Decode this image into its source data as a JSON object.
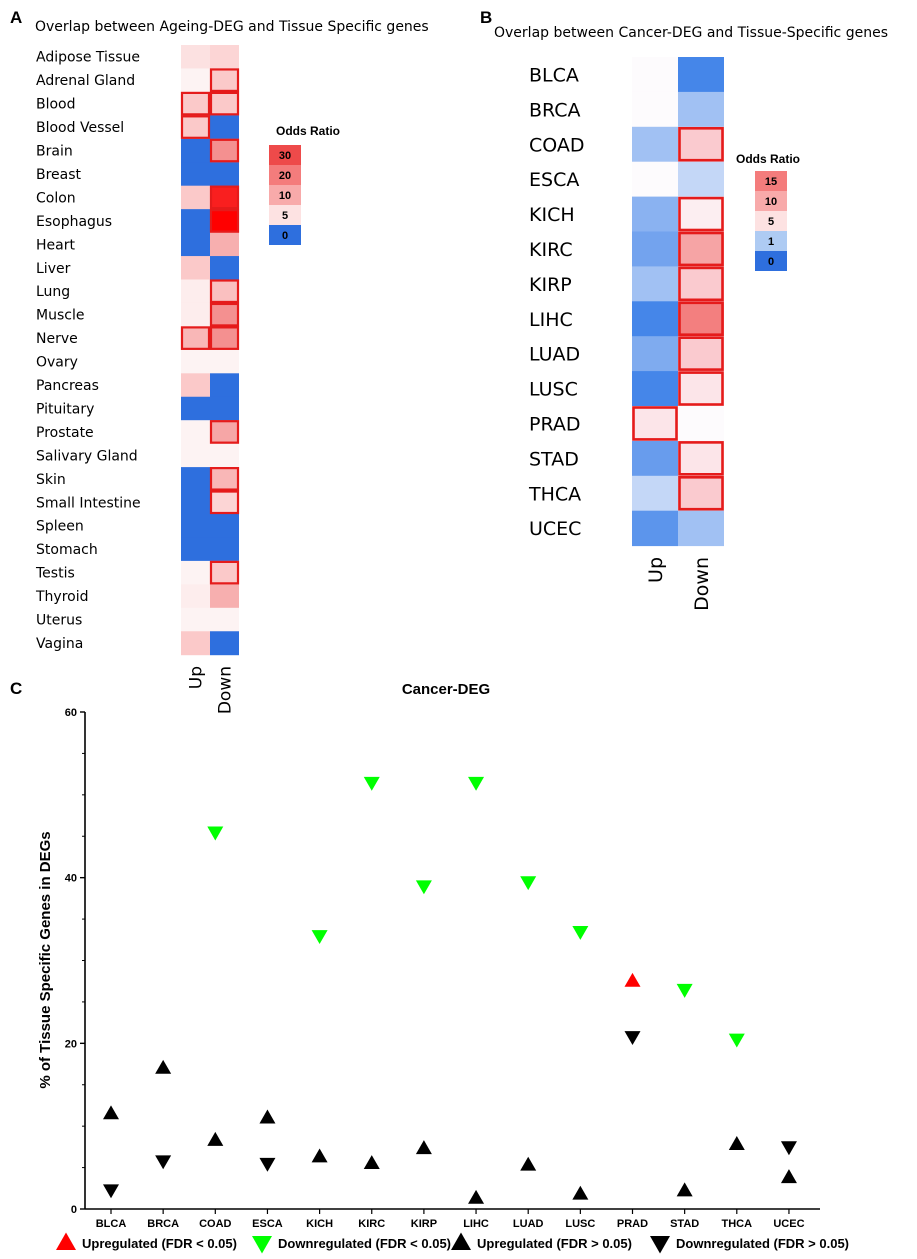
{
  "chart_data": [
    {
      "panel": "A",
      "type": "heatmap",
      "title": "Overlap between Ageing-DEG and Tissue Specific genes",
      "rows": [
        "Adipose Tissue",
        "Adrenal Gland",
        "Blood",
        "Blood Vessel",
        "Brain",
        "Breast",
        "Colon",
        "Esophagus",
        "Heart",
        "Liver",
        "Lung",
        "Muscle",
        "Nerve",
        "Ovary",
        "Pancreas",
        "Pituitary",
        "Prostate",
        "Salivary Gland",
        "Skin",
        "Small Intestine",
        "Spleen",
        "Stomach",
        "Testis",
        "Thyroid",
        "Uterus",
        "Vagina"
      ],
      "columns": [
        "Up",
        "Down"
      ],
      "values": [
        [
          3,
          4
        ],
        [
          1,
          5
        ],
        [
          5,
          5
        ],
        [
          5,
          0
        ],
        [
          0,
          12
        ],
        [
          0,
          0
        ],
        [
          5,
          28
        ],
        [
          0,
          32
        ],
        [
          0,
          8
        ],
        [
          5,
          0
        ],
        [
          2,
          6
        ],
        [
          2,
          12
        ],
        [
          7,
          12
        ],
        [
          1,
          1
        ],
        [
          5,
          0
        ],
        [
          0,
          0
        ],
        [
          1,
          9
        ],
        [
          1,
          1
        ],
        [
          0,
          7
        ],
        [
          0,
          4
        ],
        [
          0,
          0
        ],
        [
          0,
          0
        ],
        [
          1,
          5
        ],
        [
          2,
          8
        ],
        [
          1,
          1
        ],
        [
          5,
          0
        ]
      ],
      "significant": [
        [
          false,
          false
        ],
        [
          false,
          true
        ],
        [
          true,
          true
        ],
        [
          true,
          false
        ],
        [
          false,
          true
        ],
        [
          false,
          false
        ],
        [
          false,
          true
        ],
        [
          false,
          true
        ],
        [
          false,
          false
        ],
        [
          false,
          false
        ],
        [
          false,
          true
        ],
        [
          false,
          true
        ],
        [
          true,
          true
        ],
        [
          false,
          false
        ],
        [
          false,
          false
        ],
        [
          false,
          false
        ],
        [
          false,
          true
        ],
        [
          false,
          false
        ],
        [
          false,
          true
        ],
        [
          false,
          true
        ],
        [
          false,
          false
        ],
        [
          false,
          false
        ],
        [
          false,
          true
        ],
        [
          false,
          false
        ],
        [
          false,
          false
        ],
        [
          false,
          false
        ]
      ],
      "legend": {
        "title": "Odds Ratio",
        "levels": [
          "30",
          "20",
          "10",
          "5",
          "0"
        ],
        "colors": [
          "#ee4a4a",
          "#f47c7c",
          "#f8aaaa",
          "#fde2e2",
          "#2e6fde"
        ]
      }
    },
    {
      "panel": "B",
      "type": "heatmap",
      "title": "Overlap between Cancer-DEG and Tissue-Specific genes",
      "rows": [
        "BLCA",
        "BRCA",
        "COAD",
        "ESCA",
        "KICH",
        "KIRC",
        "KIRP",
        "LIHC",
        "LUAD",
        "LUSC",
        "PRAD",
        "STAD",
        "THCA",
        "UCEC"
      ],
      "columns": [
        "Up",
        "Down"
      ],
      "values": [
        [
          1,
          0.2
        ],
        [
          1,
          0.6
        ],
        [
          0.6,
          5.5
        ],
        [
          1,
          0.75
        ],
        [
          0.5,
          2.2
        ],
        [
          0.4,
          9
        ],
        [
          0.6,
          5.5
        ],
        [
          0.2,
          12
        ],
        [
          0.45,
          5.5
        ],
        [
          0.2,
          3
        ],
        [
          3,
          1
        ],
        [
          0.35,
          3
        ],
        [
          0.75,
          5.5
        ],
        [
          0.3,
          0.6
        ]
      ],
      "significant": [
        [
          false,
          false
        ],
        [
          false,
          false
        ],
        [
          false,
          true
        ],
        [
          false,
          false
        ],
        [
          false,
          true
        ],
        [
          false,
          true
        ],
        [
          false,
          true
        ],
        [
          false,
          true
        ],
        [
          false,
          true
        ],
        [
          false,
          true
        ],
        [
          true,
          false
        ],
        [
          false,
          true
        ],
        [
          false,
          true
        ],
        [
          false,
          false
        ]
      ],
      "legend": {
        "title": "Odds Ratio",
        "levels": [
          "15",
          "10",
          "5",
          "1",
          "0"
        ],
        "colors": [
          "#f47c7c",
          "#f8aaaa",
          "#fde2e2",
          "#aecbf3",
          "#2e6fde"
        ]
      }
    },
    {
      "panel": "C",
      "type": "scatter",
      "title": "Cancer-DEG",
      "ylabel": "% of Tissue Specific Genes in DEGs",
      "xlabel": "",
      "ylim": [
        0,
        60
      ],
      "yticks": [
        0,
        20,
        40,
        60
      ],
      "categories": [
        "BLCA",
        "BRCA",
        "COAD",
        "ESCA",
        "KICH",
        "KIRC",
        "KIRP",
        "LIHC",
        "LUAD",
        "LUSC",
        "PRAD",
        "STAD",
        "THCA",
        "UCEC"
      ],
      "series": [
        {
          "name": "Upregulated (FDR < 0.05)",
          "marker": "triangle-up",
          "color": "#ff0000",
          "points": [
            [
              "PRAD",
              27.5
            ]
          ]
        },
        {
          "name": "Downregulated (FDR < 0.05)",
          "marker": "triangle-down",
          "color": "#00ff00",
          "points": [
            [
              "COAD",
              45.5
            ],
            [
              "KICH",
              33
            ],
            [
              "KIRC",
              51.5
            ],
            [
              "KIRP",
              39
            ],
            [
              "LIHC",
              51.5
            ],
            [
              "LUAD",
              39.5
            ],
            [
              "LUSC",
              33.5
            ],
            [
              "STAD",
              26.5
            ],
            [
              "THCA",
              20.5
            ]
          ]
        },
        {
          "name": "Upregulated (FDR > 0.05)",
          "marker": "triangle-up",
          "color": "#000000",
          "points": [
            [
              "BLCA",
              11.5
            ],
            [
              "BRCA",
              17
            ],
            [
              "COAD",
              8.3
            ],
            [
              "ESCA",
              11
            ],
            [
              "KICH",
              6.3
            ],
            [
              "KIRC",
              5.5
            ],
            [
              "KIRP",
              7.3
            ],
            [
              "LIHC",
              1.3
            ],
            [
              "LUAD",
              5.3
            ],
            [
              "LUSC",
              1.8
            ],
            [
              "STAD",
              2.2
            ],
            [
              "THCA",
              7.8
            ],
            [
              "UCEC",
              3.8
            ]
          ]
        },
        {
          "name": "Downregulated (FDR > 0.05)",
          "marker": "triangle-down",
          "color": "#000000",
          "points": [
            [
              "BLCA",
              2.3
            ],
            [
              "BRCA",
              5.8
            ],
            [
              "ESCA",
              5.5
            ],
            [
              "PRAD",
              20.8
            ],
            [
              "UCEC",
              7.5
            ]
          ]
        }
      ]
    }
  ]
}
